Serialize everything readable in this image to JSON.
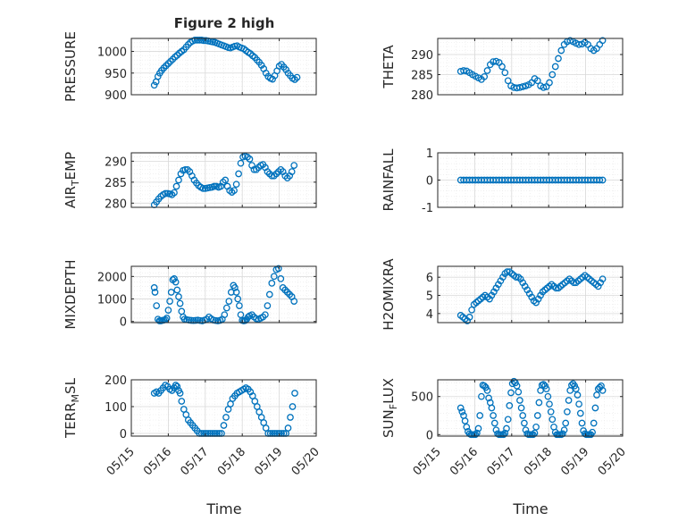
{
  "figure": {
    "title": "Figure 2 high"
  },
  "colors": {
    "marker": "#0072BD",
    "axis": "#262626",
    "grid": "#d9d9d9",
    "minor_grid": "#e8e8e8"
  },
  "chart_data": [
    {
      "type": "scatter",
      "title": "Figure 2 high",
      "ylabel": "PRESSURE",
      "xlabel": "",
      "ylim": [
        900,
        1030
      ],
      "yticks": [
        900,
        950,
        1000
      ],
      "xticks": [
        "05/15",
        "05/16",
        "05/17",
        "05/18",
        "05/19",
        "05/20"
      ],
      "xlim": [
        15,
        20
      ],
      "x": [
        15.62,
        15.67,
        15.72,
        15.77,
        15.82,
        15.88,
        15.94,
        16.0,
        16.06,
        16.12,
        16.18,
        16.24,
        16.3,
        16.36,
        16.42,
        16.48,
        16.54,
        16.6,
        16.66,
        16.72,
        16.78,
        16.84,
        16.9,
        16.96,
        17.02,
        17.08,
        17.14,
        17.2,
        17.26,
        17.32,
        17.38,
        17.44,
        17.5,
        17.56,
        17.62,
        17.68,
        17.74,
        17.8,
        17.86,
        17.92,
        17.98,
        18.04,
        18.1,
        18.16,
        18.22,
        18.28,
        18.34,
        18.4,
        18.46,
        18.52,
        18.58,
        18.64,
        18.7,
        18.76,
        18.82,
        18.88,
        18.94,
        19.0,
        19.06,
        19.12,
        19.18,
        19.24,
        19.3,
        19.36,
        19.42,
        19.48
      ],
      "y": [
        922,
        930,
        942,
        950,
        956,
        962,
        967,
        972,
        977,
        982,
        987,
        991,
        996,
        1000,
        1004,
        1010,
        1016,
        1021,
        1024,
        1026,
        1026,
        1026,
        1026,
        1025,
        1025,
        1024,
        1023,
        1022,
        1021,
        1019,
        1017,
        1015,
        1013,
        1011,
        1009,
        1008,
        1010,
        1012,
        1013,
        1010,
        1008,
        1006,
        1002,
        998,
        995,
        990,
        986,
        980,
        975,
        968,
        960,
        950,
        942,
        938,
        936,
        944,
        955,
        966,
        970,
        964,
        958,
        950,
        944,
        938,
        935,
        940
      ]
    },
    {
      "type": "scatter",
      "ylabel": "THETA",
      "ylim": [
        280,
        294
      ],
      "yticks": [
        280,
        285,
        290
      ],
      "xticks": [
        "05/15",
        "05/16",
        "05/17",
        "05/18",
        "05/19",
        "05/20"
      ],
      "xlim": [
        15,
        20
      ],
      "x": [
        15.62,
        15.7,
        15.78,
        15.86,
        15.94,
        16.02,
        16.1,
        16.18,
        16.26,
        16.34,
        16.42,
        16.5,
        16.58,
        16.66,
        16.74,
        16.82,
        16.9,
        16.98,
        17.06,
        17.14,
        17.22,
        17.3,
        17.38,
        17.46,
        17.54,
        17.62,
        17.7,
        17.78,
        17.86,
        17.94,
        18.02,
        18.1,
        18.18,
        18.26,
        18.34,
        18.42,
        18.5,
        18.58,
        18.66,
        18.74,
        18.82,
        18.9,
        18.98,
        19.06,
        19.14,
        19.22,
        19.3,
        19.38,
        19.46
      ],
      "y": [
        285.8,
        286,
        285.9,
        285.5,
        285,
        284.6,
        284.2,
        283.8,
        284.5,
        286,
        287.5,
        288.2,
        288.3,
        288,
        287,
        285.5,
        283.5,
        282.2,
        281.8,
        281.7,
        281.8,
        282,
        282.2,
        282.5,
        283,
        284,
        283.5,
        282.2,
        281.8,
        282,
        283,
        285,
        287,
        289,
        291,
        292.5,
        293.2,
        293.5,
        293.2,
        292.8,
        292.5,
        292.6,
        293,
        292.5,
        291.5,
        291,
        291.5,
        292.5,
        293.5
      ]
    },
    {
      "type": "scatter",
      "ylabel": "AIR_TEMP",
      "ylim": [
        279,
        292
      ],
      "yticks": [
        280,
        285,
        290
      ],
      "xticks": [
        "05/15",
        "05/16",
        "05/17",
        "05/18",
        "05/19",
        "05/20"
      ],
      "xlim": [
        15,
        20
      ],
      "x": [
        15.62,
        15.68,
        15.74,
        15.8,
        15.86,
        15.92,
        15.98,
        16.04,
        16.1,
        16.16,
        16.22,
        16.28,
        16.34,
        16.4,
        16.46,
        16.52,
        16.58,
        16.64,
        16.7,
        16.76,
        16.82,
        16.88,
        16.94,
        17.0,
        17.06,
        17.12,
        17.18,
        17.24,
        17.3,
        17.36,
        17.42,
        17.48,
        17.54,
        17.6,
        17.66,
        17.72,
        17.78,
        17.84,
        17.9,
        17.96,
        18.02,
        18.08,
        18.14,
        18.2,
        18.26,
        18.32,
        18.38,
        18.44,
        18.5,
        18.56,
        18.62,
        18.68,
        18.74,
        18.8,
        18.86,
        18.92,
        18.98,
        19.04,
        19.1,
        19.16,
        19.22,
        19.28,
        19.34,
        19.4
      ],
      "y": [
        279.6,
        280.3,
        281.0,
        281.6,
        282.0,
        282.3,
        282.3,
        282.2,
        282.0,
        282.5,
        284.0,
        285.5,
        287.0,
        287.8,
        288.0,
        288.0,
        287.5,
        286.5,
        285.5,
        284.8,
        284.2,
        283.8,
        283.5,
        283.5,
        283.6,
        283.7,
        283.8,
        284.0,
        284.0,
        283.8,
        284.0,
        285.0,
        285.5,
        284.0,
        283.0,
        282.6,
        283.0,
        284.5,
        287.0,
        289.5,
        291.0,
        291.2,
        291.0,
        290.5,
        289.0,
        288.0,
        288.0,
        288.5,
        289.0,
        289.2,
        288.5,
        287.5,
        287.0,
        286.5,
        286.5,
        287.0,
        287.5,
        288.0,
        287.5,
        286.5,
        286.0,
        286.5,
        287.5,
        289.0
      ]
    },
    {
      "type": "scatter",
      "ylabel": "RAINFALL",
      "ylim": [
        -1,
        1
      ],
      "yticks": [
        -1,
        0,
        1
      ],
      "xticks": [
        "05/15",
        "05/16",
        "05/17",
        "05/18",
        "05/19",
        "05/20"
      ],
      "xlim": [
        15,
        20
      ],
      "x": [
        15.62,
        15.7,
        15.78,
        15.86,
        15.94,
        16.02,
        16.1,
        16.18,
        16.26,
        16.34,
        16.42,
        16.5,
        16.58,
        16.66,
        16.74,
        16.82,
        16.9,
        16.98,
        17.06,
        17.14,
        17.22,
        17.3,
        17.38,
        17.46,
        17.54,
        17.62,
        17.7,
        17.78,
        17.86,
        17.94,
        18.02,
        18.1,
        18.18,
        18.26,
        18.34,
        18.42,
        18.5,
        18.58,
        18.66,
        18.74,
        18.82,
        18.9,
        18.98,
        19.06,
        19.14,
        19.22,
        19.3,
        19.38,
        19.46
      ],
      "y": [
        0,
        0,
        0,
        0,
        0,
        0,
        0,
        0,
        0,
        0,
        0,
        0,
        0,
        0,
        0,
        0,
        0,
        0,
        0,
        0,
        0,
        0,
        0,
        0,
        0,
        0,
        0,
        0,
        0,
        0,
        0,
        0,
        0,
        0,
        0,
        0,
        0,
        0,
        0,
        0,
        0,
        0,
        0,
        0,
        0,
        0,
        0,
        0,
        0
      ]
    },
    {
      "type": "scatter",
      "ylabel": "MIXDEPTH",
      "ylim": [
        -50,
        2450
      ],
      "yticks": [
        0,
        1000,
        2000
      ],
      "xticks": [
        "05/15",
        "05/16",
        "05/17",
        "05/18",
        "05/19",
        "05/20"
      ],
      "xlim": [
        15,
        20
      ],
      "x": [
        15.62,
        15.64,
        15.68,
        15.72,
        15.76,
        15.8,
        15.84,
        15.88,
        15.92,
        15.96,
        16.0,
        16.04,
        16.08,
        16.12,
        16.16,
        16.2,
        16.24,
        16.28,
        16.32,
        16.36,
        16.4,
        16.44,
        16.5,
        16.56,
        16.62,
        16.68,
        16.74,
        16.8,
        16.86,
        16.92,
        16.98,
        17.04,
        17.1,
        17.16,
        17.22,
        17.28,
        17.34,
        17.4,
        17.46,
        17.52,
        17.58,
        17.64,
        17.7,
        17.76,
        17.8,
        17.84,
        17.88,
        17.92,
        17.96,
        18.0,
        18.04,
        18.08,
        18.12,
        18.16,
        18.2,
        18.26,
        18.32,
        18.38,
        18.44,
        18.5,
        18.56,
        18.62,
        18.68,
        18.74,
        18.8,
        18.86,
        18.92,
        18.98,
        19.04,
        19.1,
        19.16,
        19.22,
        19.28,
        19.34,
        19.4
      ],
      "y": [
        1500,
        1300,
        700,
        100,
        30,
        30,
        50,
        60,
        80,
        150,
        500,
        900,
        1300,
        1850,
        1900,
        1750,
        1400,
        1100,
        800,
        450,
        200,
        100,
        80,
        60,
        50,
        40,
        50,
        60,
        40,
        30,
        60,
        100,
        200,
        120,
        60,
        40,
        30,
        50,
        100,
        300,
        600,
        900,
        1300,
        1600,
        1500,
        1300,
        1000,
        700,
        300,
        50,
        30,
        40,
        100,
        200,
        250,
        300,
        200,
        120,
        100,
        150,
        200,
        300,
        700,
        1200,
        1700,
        2000,
        2300,
        2350,
        1900,
        1500,
        1400,
        1300,
        1200,
        1100,
        900
      ]
    },
    {
      "type": "scatter",
      "ylabel": "H2OMIXRA",
      "ylim": [
        3.5,
        6.6
      ],
      "yticks": [
        4,
        5,
        6
      ],
      "xticks": [
        "05/15",
        "05/16",
        "05/17",
        "05/18",
        "05/19",
        "05/20"
      ],
      "xlim": [
        15,
        20
      ],
      "x": [
        15.62,
        15.68,
        15.74,
        15.8,
        15.86,
        15.92,
        15.98,
        16.04,
        16.1,
        16.16,
        16.22,
        16.28,
        16.34,
        16.4,
        16.46,
        16.52,
        16.58,
        16.64,
        16.7,
        16.76,
        16.82,
        16.88,
        16.94,
        17.0,
        17.06,
        17.12,
        17.18,
        17.24,
        17.3,
        17.36,
        17.42,
        17.48,
        17.54,
        17.6,
        17.66,
        17.72,
        17.78,
        17.84,
        17.9,
        17.96,
        18.02,
        18.08,
        18.14,
        18.2,
        18.26,
        18.32,
        18.38,
        18.44,
        18.5,
        18.56,
        18.62,
        18.68,
        18.74,
        18.8,
        18.86,
        18.92,
        18.98,
        19.04,
        19.1,
        19.16,
        19.22,
        19.28,
        19.34,
        19.4,
        19.46
      ],
      "y": [
        3.9,
        3.8,
        3.7,
        3.6,
        3.8,
        4.2,
        4.5,
        4.6,
        4.7,
        4.8,
        4.9,
        5.0,
        4.9,
        4.8,
        5.0,
        5.2,
        5.4,
        5.6,
        5.8,
        6.0,
        6.2,
        6.3,
        6.3,
        6.2,
        6.1,
        6.0,
        6.0,
        5.9,
        5.7,
        5.5,
        5.3,
        5.1,
        4.9,
        4.7,
        4.6,
        4.8,
        5.0,
        5.2,
        5.3,
        5.4,
        5.5,
        5.6,
        5.5,
        5.4,
        5.4,
        5.5,
        5.6,
        5.7,
        5.8,
        5.9,
        5.8,
        5.7,
        5.7,
        5.8,
        5.9,
        6.0,
        6.1,
        6.0,
        5.9,
        5.8,
        5.7,
        5.6,
        5.5,
        5.7,
        5.9
      ]
    },
    {
      "type": "scatter",
      "ylabel": "TERR_MSL",
      "ylim": [
        -10,
        200
      ],
      "yticks": [
        0,
        100,
        200
      ],
      "xticks": [
        "05/15",
        "05/16",
        "05/17",
        "05/18",
        "05/19",
        "05/20"
      ],
      "xlim": [
        15,
        20
      ],
      "x": [
        15.62,
        15.68,
        15.74,
        15.8,
        15.86,
        15.92,
        15.98,
        16.04,
        16.1,
        16.16,
        16.2,
        16.24,
        16.28,
        16.32,
        16.36,
        16.42,
        16.48,
        16.54,
        16.6,
        16.66,
        16.72,
        16.78,
        16.84,
        16.9,
        16.96,
        17.02,
        17.08,
        17.14,
        17.2,
        17.26,
        17.32,
        17.38,
        17.44,
        17.5,
        17.56,
        17.62,
        17.68,
        17.74,
        17.8,
        17.86,
        17.92,
        17.98,
        18.04,
        18.1,
        18.16,
        18.22,
        18.28,
        18.34,
        18.4,
        18.46,
        18.52,
        18.58,
        18.64,
        18.7,
        18.76,
        18.82,
        18.88,
        18.94,
        19.0,
        19.06,
        19.12,
        19.18,
        19.24,
        19.3,
        19.36,
        19.42
      ],
      "y": [
        150,
        155,
        150,
        160,
        170,
        180,
        175,
        165,
        160,
        170,
        180,
        175,
        160,
        150,
        120,
        90,
        70,
        50,
        40,
        30,
        20,
        10,
        0,
        0,
        0,
        0,
        0,
        0,
        0,
        0,
        0,
        0,
        0,
        30,
        60,
        90,
        110,
        130,
        140,
        150,
        155,
        160,
        165,
        170,
        165,
        155,
        140,
        120,
        100,
        80,
        60,
        40,
        20,
        0,
        0,
        0,
        0,
        0,
        0,
        0,
        0,
        0,
        20,
        60,
        100,
        150
      ]
    },
    {
      "type": "scatter",
      "ylabel": "SUN_FLUX",
      "ylim": [
        -20,
        720
      ],
      "yticks": [
        0,
        500
      ],
      "xticks": [
        "05/15",
        "05/16",
        "05/17",
        "05/18",
        "05/19",
        "05/20"
      ],
      "xlim": [
        15,
        20
      ],
      "x": [
        15.62,
        15.66,
        15.7,
        15.74,
        15.78,
        15.82,
        15.86,
        15.9,
        15.94,
        15.98,
        16.02,
        16.06,
        16.1,
        16.14,
        16.18,
        16.22,
        16.26,
        16.3,
        16.34,
        16.38,
        16.42,
        16.46,
        16.5,
        16.54,
        16.58,
        16.62,
        16.66,
        16.7,
        16.74,
        16.78,
        16.82,
        16.86,
        16.9,
        16.94,
        16.98,
        17.02,
        17.06,
        17.1,
        17.14,
        17.18,
        17.22,
        17.26,
        17.3,
        17.34,
        17.38,
        17.42,
        17.46,
        17.5,
        17.54,
        17.58,
        17.62,
        17.66,
        17.7,
        17.74,
        17.78,
        17.82,
        17.86,
        17.9,
        17.94,
        17.98,
        18.02,
        18.06,
        18.1,
        18.14,
        18.18,
        18.22,
        18.26,
        18.3,
        18.34,
        18.38,
        18.42,
        18.46,
        18.5,
        18.54,
        18.58,
        18.62,
        18.66,
        18.7,
        18.74,
        18.78,
        18.82,
        18.86,
        18.9,
        18.94,
        18.98,
        19.02,
        19.06,
        19.1,
        19.14,
        19.18,
        19.22,
        19.26,
        19.3,
        19.34,
        19.38,
        19.42,
        19.46
      ],
      "y": [
        350,
        300,
        250,
        180,
        100,
        40,
        10,
        0,
        0,
        0,
        0,
        20,
        80,
        250,
        500,
        650,
        640,
        620,
        580,
        480,
        420,
        350,
        250,
        150,
        60,
        10,
        0,
        0,
        0,
        0,
        20,
        80,
        200,
        380,
        550,
        670,
        700,
        680,
        640,
        560,
        450,
        350,
        250,
        150,
        60,
        10,
        0,
        0,
        0,
        0,
        20,
        100,
        250,
        420,
        580,
        650,
        660,
        640,
        600,
        500,
        400,
        300,
        200,
        100,
        30,
        0,
        0,
        0,
        0,
        10,
        60,
        150,
        300,
        450,
        580,
        650,
        670,
        640,
        600,
        520,
        400,
        280,
        150,
        50,
        10,
        0,
        0,
        0,
        0,
        30,
        150,
        350,
        520,
        600,
        620,
        640,
        580
      ]
    }
  ],
  "xlabel": "Time"
}
